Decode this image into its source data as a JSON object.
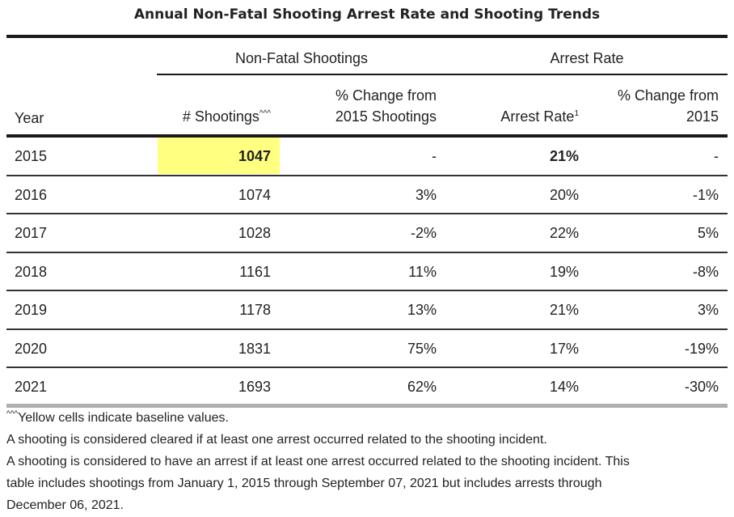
{
  "title": "Annual Non-Fatal Shooting Arrest Rate and Shooting Trends",
  "group_headers": {
    "shootings": "Non-Fatal Shootings",
    "arrest": "Arrest Rate"
  },
  "columns": {
    "year": "Year",
    "shootings": "# Shootings",
    "shootings_sup": "^^^",
    "pct_shootings_1": "% Change from",
    "pct_shootings_2": "2015 Shootings",
    "arrest_rate": "Arrest Rate",
    "arrest_rate_sup": "1",
    "pct_arrest_1": "% Change from",
    "pct_arrest_2": "2015"
  },
  "chart_data": {
    "type": "table",
    "title": "Annual Non-Fatal Shooting Arrest Rate and Shooting Trends",
    "rows": [
      {
        "year": "2015",
        "shootings": "1047",
        "pct_shootings": "-",
        "arrest_rate": "21%",
        "pct_arrest": "-"
      },
      {
        "year": "2016",
        "shootings": "1074",
        "pct_shootings": "3%",
        "arrest_rate": "20%",
        "pct_arrest": "-1%"
      },
      {
        "year": "2017",
        "shootings": "1028",
        "pct_shootings": "-2%",
        "arrest_rate": "22%",
        "pct_arrest": "5%"
      },
      {
        "year": "2018",
        "shootings": "1161",
        "pct_shootings": "11%",
        "arrest_rate": "19%",
        "pct_arrest": "-8%"
      },
      {
        "year": "2019",
        "shootings": "1178",
        "pct_shootings": "13%",
        "arrest_rate": "21%",
        "pct_arrest": "3%"
      },
      {
        "year": "2020",
        "shootings": "1831",
        "pct_shootings": "75%",
        "arrest_rate": "17%",
        "pct_arrest": "-19%"
      },
      {
        "year": "2021",
        "shootings": "1693",
        "pct_shootings": "62%",
        "arrest_rate": "14%",
        "pct_arrest": "-30%"
      }
    ],
    "highlight_color": "#ffff80"
  },
  "footnotes": {
    "note1_sup": "^^^",
    "note1": "Yellow cells indicate baseline values.",
    "note2": "A shooting is considered cleared if at least one arrest occurred related to the shooting incident.",
    "note3": "A shooting is considered to have an arrest if at least one arrest occurred related to the shooting incident. This",
    "note4": "table includes shootings from January 1, 2015 through September 07, 2021 but includes arrests through",
    "note5": "December 06, 2021."
  }
}
